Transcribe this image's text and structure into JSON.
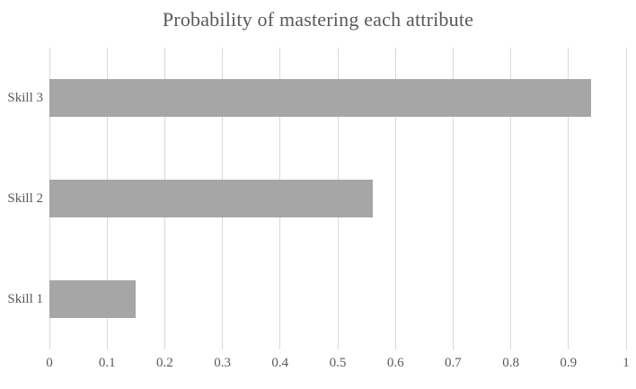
{
  "chart_data": {
    "type": "bar",
    "orientation": "horizontal",
    "title": "Probability of mastering each attribute",
    "categories": [
      "Skill 1",
      "Skill 2",
      "Skill 3"
    ],
    "values": [
      0.15,
      0.56,
      0.94
    ],
    "xlabel": "",
    "ylabel": "",
    "xlim": [
      0,
      1
    ],
    "xticks": [
      0,
      0.1,
      0.2,
      0.3,
      0.4,
      0.5,
      0.6,
      0.7,
      0.8,
      0.9,
      1
    ],
    "xtick_labels": [
      "0",
      "0.1",
      "0.2",
      "0.3",
      "0.4",
      "0.5",
      "0.6",
      "0.7",
      "0.8",
      "0.9",
      "1"
    ],
    "grid": "vertical gridlines on, at every 0.1",
    "legend": "none",
    "category_order_on_screen": "top-to-bottom: Skill 3, Skill 2, Skill 1",
    "colors": {
      "bar": "#a6a6a6",
      "gridline": "#d9d9d9",
      "text": "#595959",
      "background": "#ffffff"
    }
  }
}
